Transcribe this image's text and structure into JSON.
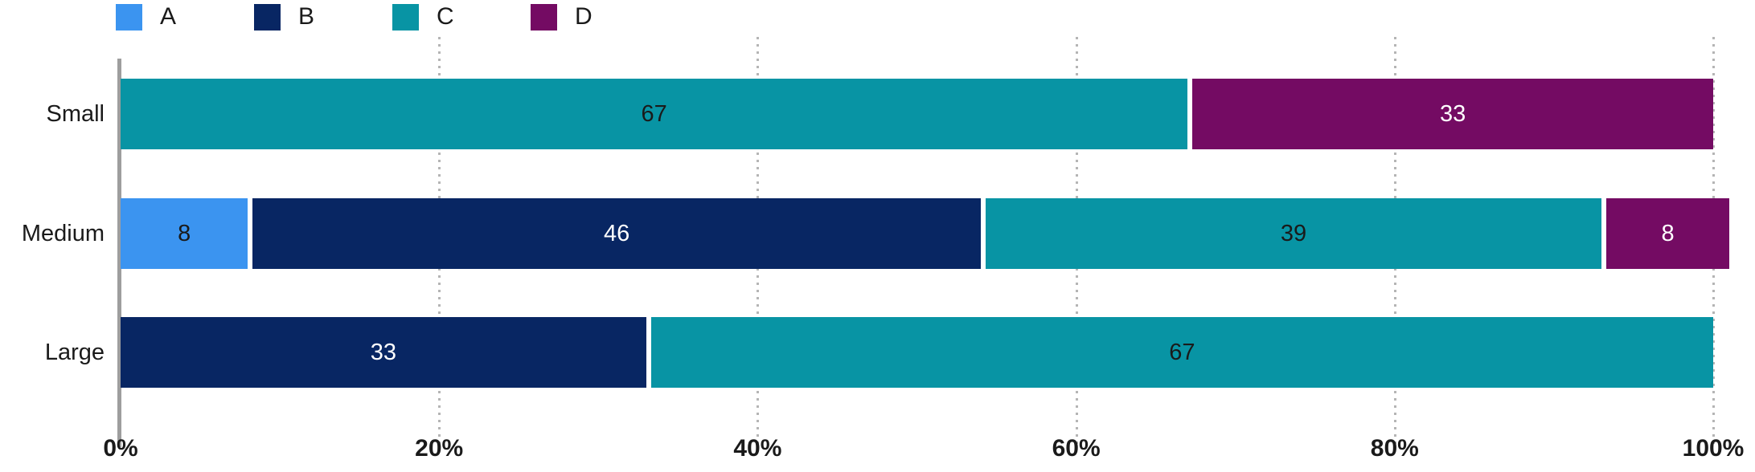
{
  "legend": {
    "items": [
      {
        "label": "A",
        "color": "#3B94F0"
      },
      {
        "label": "B",
        "color": "#082663"
      },
      {
        "label": "C",
        "color": "#0894A4"
      },
      {
        "label": "D",
        "color": "#740B63"
      }
    ]
  },
  "chart_data": {
    "type": "bar",
    "orientation": "horizontal",
    "stacked": true,
    "categories": [
      "Small",
      "Medium",
      "Large"
    ],
    "series": [
      {
        "name": "A",
        "color": "#3B94F0",
        "label_color": "#1A1A1A",
        "values": [
          0,
          8,
          0
        ]
      },
      {
        "name": "B",
        "color": "#082663",
        "label_color": "#FFFFFF",
        "values": [
          0,
          46,
          33
        ]
      },
      {
        "name": "C",
        "color": "#0894A4",
        "label_color": "#1A1A1A",
        "values": [
          67,
          39,
          67
        ]
      },
      {
        "name": "D",
        "color": "#740B63",
        "label_color": "#FFFFFF",
        "values": [
          33,
          8,
          0
        ]
      }
    ],
    "value_labels_shown": true,
    "x_axis": {
      "tick_labels": [
        "0%",
        "20%",
        "40%",
        "60%",
        "80%",
        "100%"
      ],
      "tick_values": [
        0,
        20,
        40,
        60,
        80,
        100
      ],
      "range": [
        0,
        100
      ],
      "gridlines": "dotted"
    },
    "title": "",
    "xlabel": "",
    "ylabel": ""
  },
  "colors": {
    "axis_line": "#9E9E9E",
    "gridline": "#B5B5B5",
    "text": "#1A1A1A"
  }
}
